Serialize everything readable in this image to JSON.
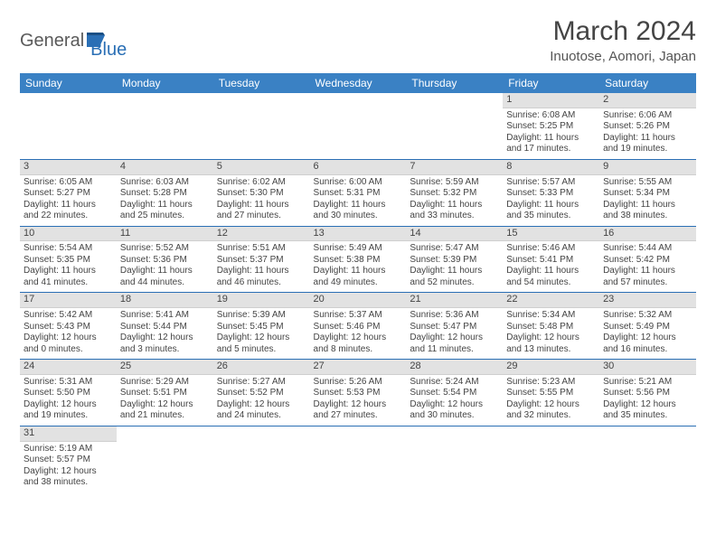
{
  "logo": {
    "text1": "General",
    "text2": "Blue"
  },
  "title": "March 2024",
  "location": "Inuotose, Aomori, Japan",
  "colors": {
    "header_bg": "#3a81c4",
    "header_fg": "#ffffff",
    "daynum_bg": "#e2e2e2",
    "row_border": "#2a6fb5",
    "logo_gray": "#5a5a5a",
    "logo_blue": "#2a6fb5"
  },
  "weekdays": [
    "Sunday",
    "Monday",
    "Tuesday",
    "Wednesday",
    "Thursday",
    "Friday",
    "Saturday"
  ],
  "layout": {
    "columns": 7,
    "rows": 6,
    "first_weekday_index": 5,
    "days_in_month": 31
  },
  "days": [
    {
      "n": 1,
      "sunrise": "6:08 AM",
      "sunset": "5:25 PM",
      "daylight": "11 hours and 17 minutes."
    },
    {
      "n": 2,
      "sunrise": "6:06 AM",
      "sunset": "5:26 PM",
      "daylight": "11 hours and 19 minutes."
    },
    {
      "n": 3,
      "sunrise": "6:05 AM",
      "sunset": "5:27 PM",
      "daylight": "11 hours and 22 minutes."
    },
    {
      "n": 4,
      "sunrise": "6:03 AM",
      "sunset": "5:28 PM",
      "daylight": "11 hours and 25 minutes."
    },
    {
      "n": 5,
      "sunrise": "6:02 AM",
      "sunset": "5:30 PM",
      "daylight": "11 hours and 27 minutes."
    },
    {
      "n": 6,
      "sunrise": "6:00 AM",
      "sunset": "5:31 PM",
      "daylight": "11 hours and 30 minutes."
    },
    {
      "n": 7,
      "sunrise": "5:59 AM",
      "sunset": "5:32 PM",
      "daylight": "11 hours and 33 minutes."
    },
    {
      "n": 8,
      "sunrise": "5:57 AM",
      "sunset": "5:33 PM",
      "daylight": "11 hours and 35 minutes."
    },
    {
      "n": 9,
      "sunrise": "5:55 AM",
      "sunset": "5:34 PM",
      "daylight": "11 hours and 38 minutes."
    },
    {
      "n": 10,
      "sunrise": "5:54 AM",
      "sunset": "5:35 PM",
      "daylight": "11 hours and 41 minutes."
    },
    {
      "n": 11,
      "sunrise": "5:52 AM",
      "sunset": "5:36 PM",
      "daylight": "11 hours and 44 minutes."
    },
    {
      "n": 12,
      "sunrise": "5:51 AM",
      "sunset": "5:37 PM",
      "daylight": "11 hours and 46 minutes."
    },
    {
      "n": 13,
      "sunrise": "5:49 AM",
      "sunset": "5:38 PM",
      "daylight": "11 hours and 49 minutes."
    },
    {
      "n": 14,
      "sunrise": "5:47 AM",
      "sunset": "5:39 PM",
      "daylight": "11 hours and 52 minutes."
    },
    {
      "n": 15,
      "sunrise": "5:46 AM",
      "sunset": "5:41 PM",
      "daylight": "11 hours and 54 minutes."
    },
    {
      "n": 16,
      "sunrise": "5:44 AM",
      "sunset": "5:42 PM",
      "daylight": "11 hours and 57 minutes."
    },
    {
      "n": 17,
      "sunrise": "5:42 AM",
      "sunset": "5:43 PM",
      "daylight": "12 hours and 0 minutes."
    },
    {
      "n": 18,
      "sunrise": "5:41 AM",
      "sunset": "5:44 PM",
      "daylight": "12 hours and 3 minutes."
    },
    {
      "n": 19,
      "sunrise": "5:39 AM",
      "sunset": "5:45 PM",
      "daylight": "12 hours and 5 minutes."
    },
    {
      "n": 20,
      "sunrise": "5:37 AM",
      "sunset": "5:46 PM",
      "daylight": "12 hours and 8 minutes."
    },
    {
      "n": 21,
      "sunrise": "5:36 AM",
      "sunset": "5:47 PM",
      "daylight": "12 hours and 11 minutes."
    },
    {
      "n": 22,
      "sunrise": "5:34 AM",
      "sunset": "5:48 PM",
      "daylight": "12 hours and 13 minutes."
    },
    {
      "n": 23,
      "sunrise": "5:32 AM",
      "sunset": "5:49 PM",
      "daylight": "12 hours and 16 minutes."
    },
    {
      "n": 24,
      "sunrise": "5:31 AM",
      "sunset": "5:50 PM",
      "daylight": "12 hours and 19 minutes."
    },
    {
      "n": 25,
      "sunrise": "5:29 AM",
      "sunset": "5:51 PM",
      "daylight": "12 hours and 21 minutes."
    },
    {
      "n": 26,
      "sunrise": "5:27 AM",
      "sunset": "5:52 PM",
      "daylight": "12 hours and 24 minutes."
    },
    {
      "n": 27,
      "sunrise": "5:26 AM",
      "sunset": "5:53 PM",
      "daylight": "12 hours and 27 minutes."
    },
    {
      "n": 28,
      "sunrise": "5:24 AM",
      "sunset": "5:54 PM",
      "daylight": "12 hours and 30 minutes."
    },
    {
      "n": 29,
      "sunrise": "5:23 AM",
      "sunset": "5:55 PM",
      "daylight": "12 hours and 32 minutes."
    },
    {
      "n": 30,
      "sunrise": "5:21 AM",
      "sunset": "5:56 PM",
      "daylight": "12 hours and 35 minutes."
    },
    {
      "n": 31,
      "sunrise": "5:19 AM",
      "sunset": "5:57 PM",
      "daylight": "12 hours and 38 minutes."
    }
  ],
  "labels": {
    "sunrise": "Sunrise:",
    "sunset": "Sunset:",
    "daylight": "Daylight:"
  }
}
